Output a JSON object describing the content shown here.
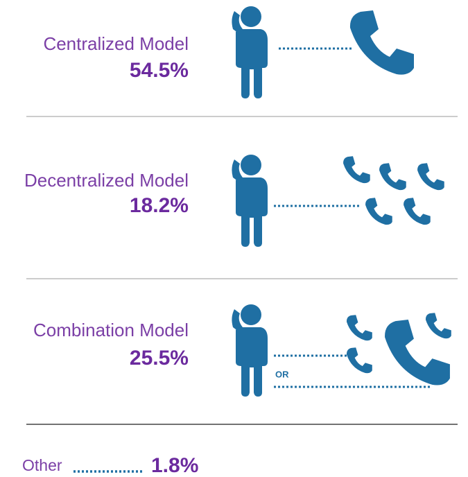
{
  "rows": [
    {
      "label": "Centralized Model",
      "value": "54.5%"
    },
    {
      "label": "Decentralized Model",
      "value": "18.2%"
    },
    {
      "label": "Combination Model",
      "value": "25.5%"
    },
    {
      "label": "Other",
      "value": "1.8%"
    }
  ],
  "or_label": "OR"
}
